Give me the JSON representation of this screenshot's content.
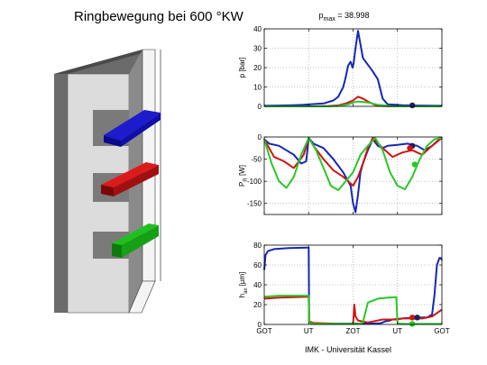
{
  "title": "Ringbewegung bei 600 °KW",
  "footer": "IMK - Universität Kassel",
  "colors": {
    "blue": "#1428b4",
    "red": "#d21414",
    "green": "#28c828",
    "dark": "#1e1e5a"
  },
  "chart_data": [
    {
      "type": "line",
      "title_main": "p",
      "title_sub": "max",
      "title_value": " = 38.998",
      "ylabel": "p [bar]",
      "ylim": [
        0,
        40
      ],
      "yticks": [
        0,
        10,
        20,
        30,
        40
      ],
      "xlim": [
        0,
        720
      ],
      "xticks": [],
      "grid": true,
      "series": [
        {
          "color": "blue",
          "x": [
            0,
            60,
            120,
            160,
            240,
            280,
            300,
            320,
            330,
            340,
            350,
            358,
            362,
            370,
            380,
            400,
            440,
            460,
            480,
            500,
            560,
            620,
            700,
            720
          ],
          "y": [
            0.3,
            0.4,
            0.6,
            0.8,
            1.5,
            3,
            5,
            10,
            15,
            21,
            23,
            20,
            22,
            30,
            38.998,
            25,
            18,
            14,
            4,
            1,
            0.6,
            0.4,
            0.3,
            0.3
          ]
        },
        {
          "color": "red",
          "x": [
            0,
            200,
            260,
            300,
            330,
            360,
            380,
            400,
            420,
            440,
            460,
            520,
            720
          ],
          "y": [
            0,
            0,
            0.2,
            0.5,
            1.5,
            3,
            5,
            4,
            2.5,
            1.2,
            0.3,
            0,
            0
          ]
        },
        {
          "color": "green",
          "x": [
            0,
            240,
            300,
            340,
            360,
            380,
            420,
            460,
            520,
            720
          ],
          "y": [
            0,
            0,
            0.2,
            1,
            2,
            2.5,
            2,
            0.8,
            0,
            0
          ]
        }
      ],
      "markers": [
        {
          "color": "dark",
          "x": 600,
          "y": 0.5
        }
      ]
    },
    {
      "type": "line",
      "ylabel_main": "P",
      "ylabel_sub": "R",
      "ylabel_unit": " [W]",
      "ylim": [
        -175,
        0
      ],
      "yticks": [
        -150,
        -100,
        -50,
        0
      ],
      "xlim": [
        0,
        720
      ],
      "xticks": [],
      "grid": true,
      "series": [
        {
          "color": "blue",
          "x": [
            0,
            20,
            60,
            120,
            150,
            170,
            180,
            200,
            240,
            280,
            320,
            350,
            360,
            370,
            380,
            390,
            400,
            420,
            440,
            460,
            480,
            500,
            540,
            580,
            620,
            650,
            680,
            700,
            720
          ],
          "y": [
            -5,
            -15,
            -20,
            -40,
            -60,
            -55,
            -2,
            -15,
            -25,
            -50,
            -80,
            -110,
            -150,
            -170,
            -130,
            -80,
            -60,
            -30,
            -5,
            -20,
            -25,
            -20,
            -18,
            -15,
            -20,
            -30,
            -20,
            -10,
            -2
          ]
        },
        {
          "color": "red",
          "x": [
            0,
            40,
            80,
            120,
            160,
            180,
            200,
            240,
            280,
            320,
            350,
            360,
            380,
            400,
            420,
            440,
            480,
            520,
            560,
            600,
            640,
            680,
            720
          ],
          "y": [
            -5,
            -45,
            -55,
            -70,
            -40,
            -2,
            -20,
            -50,
            -75,
            -90,
            -105,
            -110,
            -90,
            -60,
            -25,
            -2,
            -25,
            -45,
            -35,
            -30,
            -40,
            -20,
            -2
          ]
        },
        {
          "color": "green",
          "x": [
            0,
            30,
            60,
            90,
            120,
            150,
            180,
            210,
            240,
            270,
            300,
            330,
            360,
            390,
            420,
            450,
            480,
            510,
            540,
            570,
            600,
            630,
            660,
            690,
            720
          ],
          "y": [
            -5,
            -60,
            -100,
            -115,
            -90,
            -40,
            -2,
            -30,
            -70,
            -110,
            -120,
            -100,
            -80,
            -40,
            -20,
            -2,
            -30,
            -80,
            -110,
            -118,
            -90,
            -50,
            -20,
            -5,
            -2
          ]
        }
      ],
      "markers": [
        {
          "color": "dark",
          "x": 600,
          "y": -20
        },
        {
          "color": "red",
          "x": 590,
          "y": -25
        },
        {
          "color": "green",
          "x": 610,
          "y": -62
        }
      ]
    },
    {
      "type": "line",
      "ylabel_main": "h",
      "ylabel_sub": "ax",
      "ylabel_unit": " [µm]",
      "ylim": [
        0,
        80
      ],
      "yticks": [
        0,
        20,
        40,
        60,
        80
      ],
      "xlim": [
        0,
        720
      ],
      "xticklabels": [
        {
          "x": 0,
          "label": "GOT"
        },
        {
          "x": 180,
          "label": "UT"
        },
        {
          "x": 360,
          "label": "ZOT"
        },
        {
          "x": 540,
          "label": "UT"
        },
        {
          "x": 720,
          "label": "GOT"
        }
      ],
      "grid": true,
      "series": [
        {
          "color": "blue",
          "x": [
            0,
            5,
            15,
            40,
            100,
            175,
            180,
            182,
            190,
            200,
            300,
            420,
            470,
            480,
            490,
            500,
            510,
            520,
            540,
            560,
            580,
            600,
            640,
            660,
            680,
            690,
            700,
            710,
            715,
            720
          ],
          "y": [
            55,
            70,
            74,
            76,
            77,
            77.5,
            77.5,
            3,
            1,
            0.8,
            0.8,
            1,
            1.2,
            2,
            3,
            3.5,
            4,
            5,
            5.5,
            6,
            6.5,
            6.5,
            7,
            7,
            10,
            30,
            60,
            67,
            67,
            65
          ]
        },
        {
          "color": "red",
          "x": [
            0,
            60,
            120,
            175,
            180,
            182,
            200,
            260,
            300,
            340,
            360,
            365,
            370,
            380,
            400,
            420,
            440,
            460,
            480,
            500,
            520,
            540,
            560,
            580,
            600,
            640,
            680,
            720
          ],
          "y": [
            26,
            27,
            27.5,
            28,
            28,
            3,
            1.5,
            1,
            0.5,
            0.5,
            0.5,
            20,
            8,
            4,
            3,
            2,
            3,
            4,
            5,
            5,
            5,
            5,
            6,
            6,
            6,
            6,
            8,
            15
          ]
        },
        {
          "color": "green",
          "x": [
            0,
            60,
            120,
            175,
            180,
            182,
            200,
            260,
            320,
            380,
            400,
            420,
            460,
            500,
            530,
            535,
            540,
            560,
            600,
            640,
            720
          ],
          "y": [
            28,
            29,
            29,
            29,
            29,
            2,
            0.5,
            0.5,
            0.5,
            0.5,
            2,
            22,
            26,
            27,
            27.5,
            27.5,
            1,
            0.5,
            0.5,
            0.5,
            0.5
          ]
        }
      ],
      "markers": [
        {
          "color": "red",
          "x": 600,
          "y": 7
        },
        {
          "color": "dark",
          "x": 620,
          "y": 7
        },
        {
          "color": "green",
          "x": 600,
          "y": 0.5
        }
      ]
    }
  ]
}
